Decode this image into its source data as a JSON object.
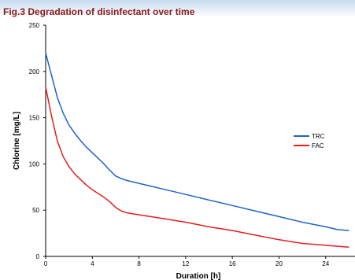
{
  "chart_data": {
    "type": "line",
    "title": "Fig.3 Degradation of disinfectant over time",
    "xlabel": "Duration [h]",
    "ylabel": "Chlorine [mg/L]",
    "xlim": [
      0,
      26
    ],
    "ylim": [
      0,
      250
    ],
    "xticks": [
      0,
      4,
      8,
      12,
      16,
      20,
      24
    ],
    "yticks": [
      0,
      50,
      100,
      150,
      200,
      250
    ],
    "grid": false,
    "legend_position": "right",
    "series": [
      {
        "name": "TRC",
        "color": "#1e64c8",
        "x": [
          0,
          0.5,
          1,
          1.5,
          2,
          2.5,
          3,
          3.5,
          4,
          4.5,
          5,
          5.5,
          6,
          6.5,
          7,
          8,
          9,
          10,
          11,
          12,
          14,
          16,
          18,
          20,
          22,
          24,
          25,
          26
        ],
        "y": [
          220,
          196,
          172,
          155,
          142,
          133,
          125,
          118,
          112,
          106,
          100,
          93,
          87,
          84,
          82,
          79,
          76,
          73,
          70,
          67,
          61,
          55,
          49,
          43,
          37,
          32,
          29,
          28
        ]
      },
      {
        "name": "FAC",
        "color": "#e41e1e",
        "x": [
          0,
          0.5,
          1,
          1.5,
          2,
          2.5,
          3,
          3.5,
          4,
          4.5,
          5,
          5.5,
          6,
          6.5,
          7,
          8,
          9,
          10,
          11,
          12,
          14,
          16,
          18,
          20,
          22,
          24,
          25,
          26
        ],
        "y": [
          183,
          152,
          125,
          108,
          97,
          89,
          83,
          77,
          72,
          68,
          64,
          59,
          53,
          49,
          47,
          45,
          43,
          41,
          39,
          37,
          32,
          28,
          23,
          18,
          14,
          12,
          11,
          10
        ]
      }
    ]
  }
}
